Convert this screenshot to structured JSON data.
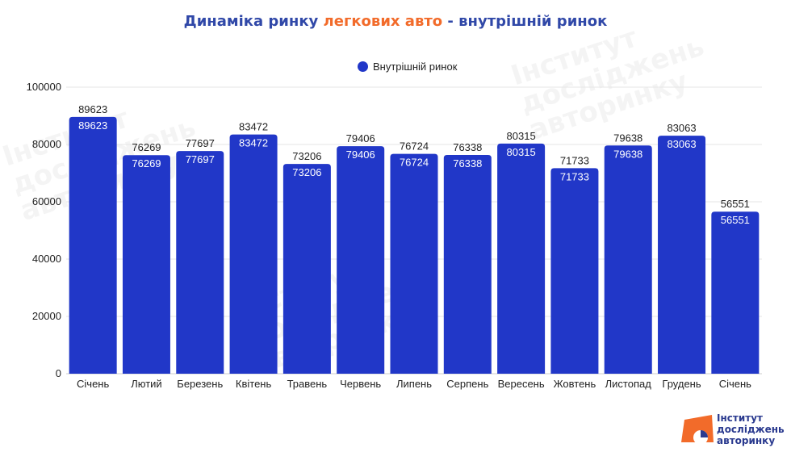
{
  "title": {
    "part1": "Динаміка ринку ",
    "part2": "легкових авто",
    "part3": " - внутрішній ринок"
  },
  "legend": {
    "label": "Внутрішній ринок"
  },
  "logo": {
    "line1": "Інститут",
    "line2": "досліджень",
    "line3": "авторинку"
  },
  "colors": {
    "bar": "#2137c8",
    "title": "#3048a8",
    "accent": "#f26b2a",
    "grid": "#e6e6e6"
  },
  "chart_data": {
    "type": "bar",
    "categories": [
      "Січень",
      "Лютий",
      "Березень",
      "Квітень",
      "Травень",
      "Червень",
      "Липень",
      "Серпень",
      "Вересень",
      "Жовтень",
      "Листопад",
      "Грудень",
      "Січень"
    ],
    "series": [
      {
        "name": "Внутрішній ринок",
        "values": [
          89623,
          76269,
          77697,
          83472,
          73206,
          79406,
          76724,
          76338,
          80315,
          71733,
          79638,
          83063,
          56551
        ]
      }
    ],
    "yticks": [
      0,
      20000,
      40000,
      60000,
      80000,
      100000
    ],
    "ylim": [
      0,
      100000
    ],
    "grid": true,
    "legend_position": "top-center"
  }
}
